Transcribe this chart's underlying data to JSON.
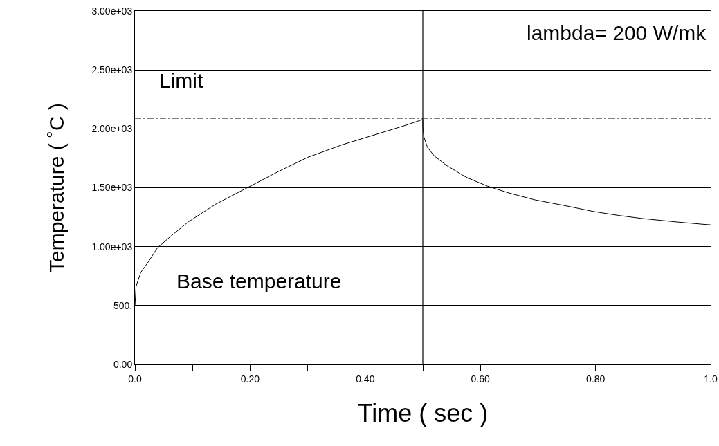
{
  "chart_data": {
    "type": "line",
    "xlabel": "Time ( sec )",
    "ylabel": "Temperature ( ˚C )",
    "x": [
      0,
      0.002,
      0.01,
      0.023,
      0.039,
      0.06,
      0.093,
      0.14,
      0.197,
      0.25,
      0.3,
      0.36,
      0.424,
      0.47,
      0.5,
      0.5,
      0.502,
      0.508,
      0.52,
      0.541,
      0.575,
      0.612,
      0.65,
      0.695,
      0.75,
      0.798,
      0.84,
      0.881,
      0.94,
      0.989,
      1.0
    ],
    "series": [
      {
        "color": "#000000",
        "values": [
          500,
          663,
          780,
          869,
          989,
          1080,
          1211,
          1360,
          1505,
          1640,
          1758,
          1865,
          1961,
          2030,
          2080,
          2015,
          1930,
          1843,
          1770,
          1690,
          1590,
          1514,
          1455,
          1397,
          1345,
          1297,
          1265,
          1239,
          1210,
          1189,
          1185
        ]
      }
    ],
    "xlim": [
      0,
      1.0
    ],
    "ylim": [
      0,
      3000
    ],
    "xticks": [
      {
        "value": 0,
        "label": "0.0"
      },
      {
        "value": 0.1,
        "label": null
      },
      {
        "value": 0.2,
        "label": "0.20"
      },
      {
        "value": 0.3,
        "label": null
      },
      {
        "value": 0.4,
        "label": "0.40"
      },
      {
        "value": 0.5,
        "label": null
      },
      {
        "value": 0.6,
        "label": "0.60"
      },
      {
        "value": 0.7,
        "label": null
      },
      {
        "value": 0.8,
        "label": "0.80"
      },
      {
        "value": 0.9,
        "label": null
      },
      {
        "value": 1.0,
        "label": "1.0"
      }
    ],
    "yticks": [
      {
        "value": 0,
        "label": "0.00"
      },
      {
        "value": 500,
        "label": "500."
      },
      {
        "value": 1000,
        "label": "1.00e+03"
      },
      {
        "value": 1500,
        "label": "1.50e+03"
      },
      {
        "value": 2000,
        "label": "2.00e+03"
      },
      {
        "value": 2500,
        "label": "2.50e+03"
      },
      {
        "value": 3000,
        "label": "3.00e+03"
      }
    ],
    "grid": "y",
    "marker": "none",
    "line_style": "solid",
    "ref_lines": [
      {
        "axis": "y",
        "value": 2090,
        "label": "Limit",
        "color": "#000000",
        "line_style": "dashed"
      },
      {
        "axis": "x",
        "value": 0.5,
        "color": "#000000",
        "line_style": "solid"
      }
    ],
    "annotations": [
      "lambda= 200 W/mk",
      "Base temperature"
    ]
  }
}
